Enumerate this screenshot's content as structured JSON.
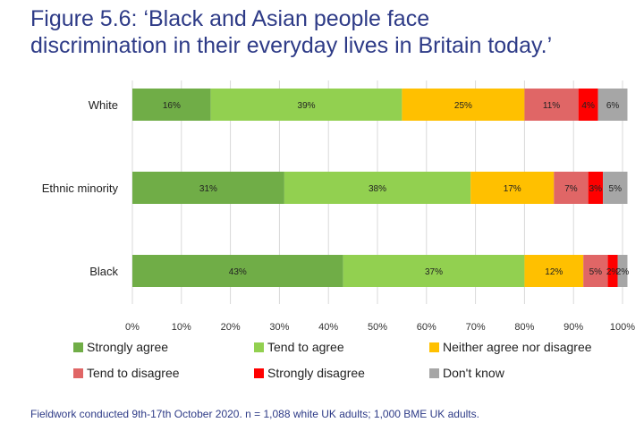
{
  "title_line1": "Figure 5.6: ‘Black and Asian people face",
  "title_line2": "discrimination in their everyday lives in Britain today.’",
  "footnote": "Fieldwork conducted 9th-17th October 2020. n = 1,088 white UK adults; 1,000 BME UK adults.",
  "chart_data": {
    "type": "bar",
    "orientation": "horizontal-stacked-100",
    "categories": [
      "White",
      "Ethnic minority",
      "Black"
    ],
    "series": [
      {
        "name": "Strongly agree",
        "color": "#70ad47",
        "values": [
          16,
          31,
          43
        ]
      },
      {
        "name": "Tend to agree",
        "color": "#92d050",
        "values": [
          39,
          38,
          37
        ]
      },
      {
        "name": "Neither agree nor disagree",
        "color": "#ffc000",
        "values": [
          25,
          17,
          12
        ]
      },
      {
        "name": "Tend to disagree",
        "color": "#e06666",
        "values": [
          11,
          7,
          5
        ]
      },
      {
        "name": "Strongly disagree",
        "color": "#ff0000",
        "values": [
          4,
          3,
          2
        ]
      },
      {
        "name": "Don't know",
        "color": "#a6a6a6",
        "values": [
          6,
          5,
          2
        ]
      }
    ],
    "value_suffix": "%",
    "xticks": [
      "0%",
      "10%",
      "20%",
      "30%",
      "40%",
      "50%",
      "60%",
      "70%",
      "80%",
      "90%",
      "100%"
    ],
    "xlim": [
      0,
      100
    ],
    "legend_position": "bottom"
  }
}
